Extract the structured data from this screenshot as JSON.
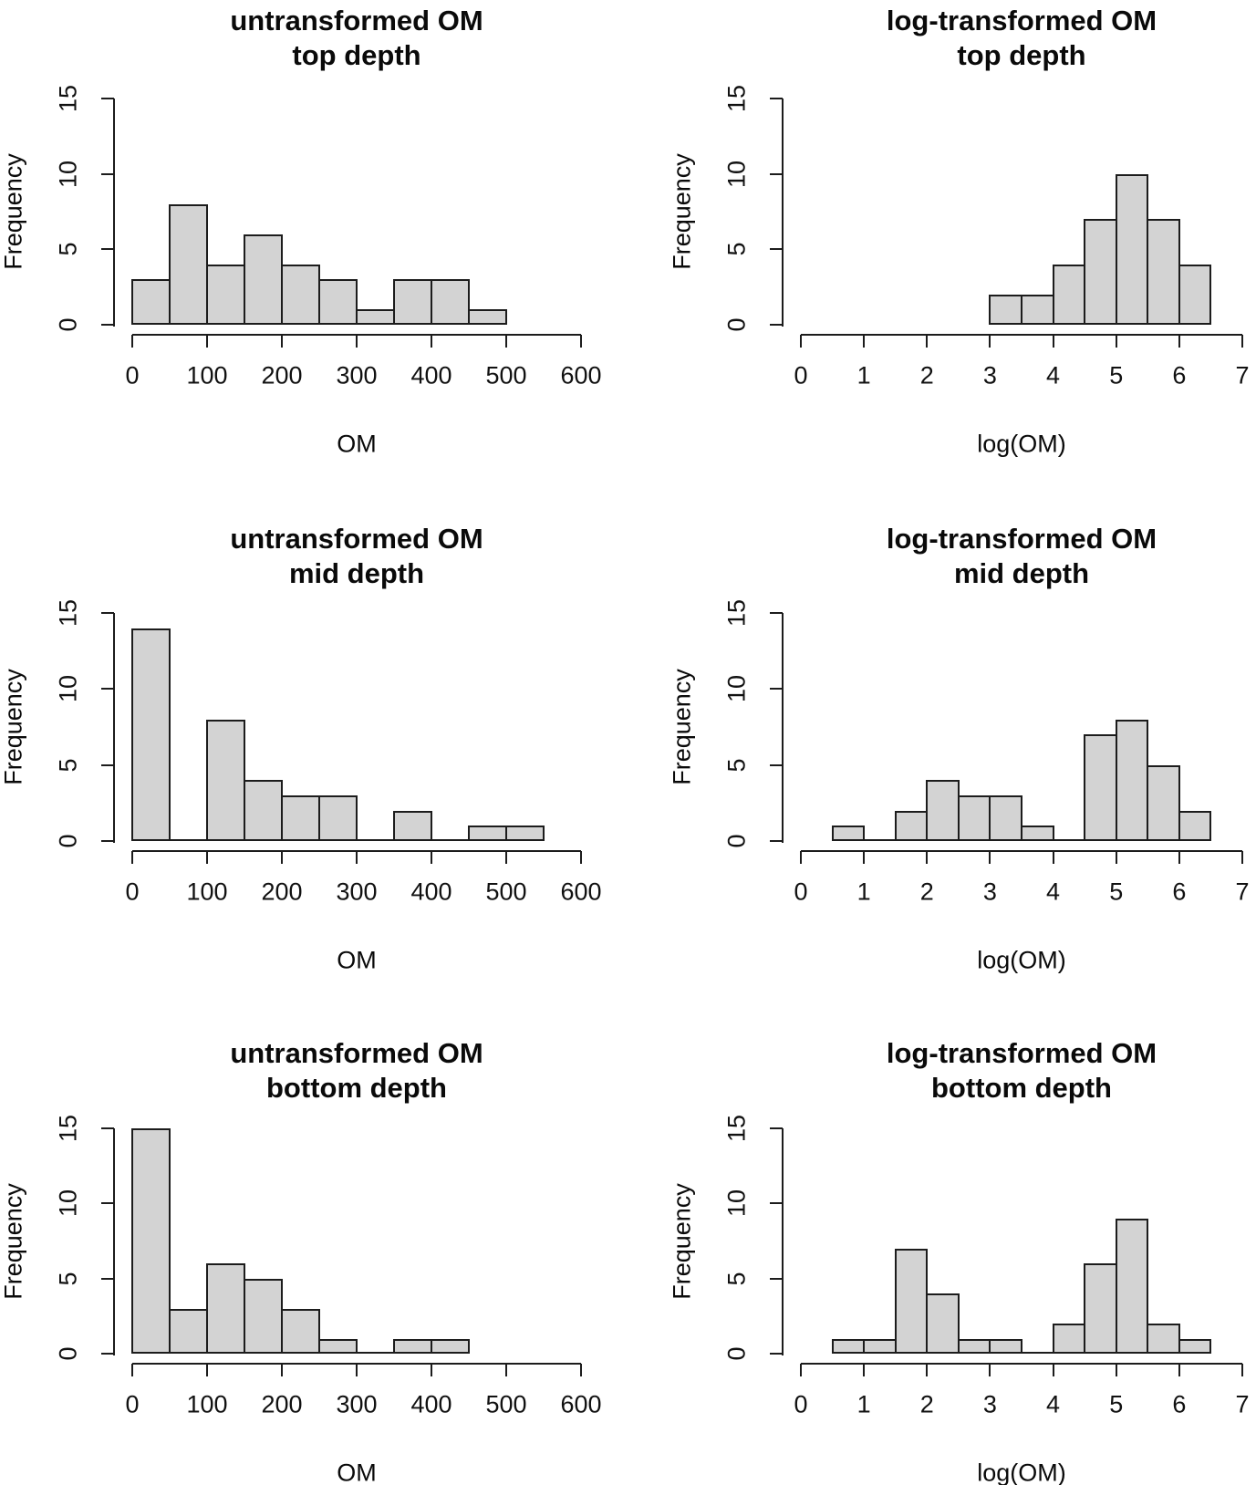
{
  "figure": {
    "description": "2x3 grid of R histograms comparing untransformed vs log-transformed OM at three depths",
    "colors": {
      "background": "#ffffff",
      "bar_fill": "#d3d3d3",
      "bar_border": "#1c1c1c",
      "axis": "#1c1c1c",
      "text": "#0a0a0a"
    }
  },
  "chart_data": [
    {
      "type": "bar",
      "panel": "top-left",
      "title_line1": "untransformed OM",
      "title_line2": "top depth",
      "xlabel": "OM",
      "ylabel": "Frequency",
      "xlim": [
        0,
        600
      ],
      "ylim": [
        0,
        15
      ],
      "xticks": [
        0,
        100,
        200,
        300,
        400,
        500,
        600
      ],
      "yticks": [
        0,
        5,
        10,
        15
      ],
      "bin_start": 0,
      "bin_width": 50,
      "counts": [
        3,
        8,
        4,
        6,
        4,
        3,
        1,
        3,
        3,
        1
      ],
      "grid": false,
      "legend": false
    },
    {
      "type": "bar",
      "panel": "top-right",
      "title_line1": "log-transformed OM",
      "title_line2": "top depth",
      "xlabel": "log(OM)",
      "ylabel": "Frequency",
      "xlim": [
        0,
        7
      ],
      "ylim": [
        0,
        15
      ],
      "xticks": [
        0,
        1,
        2,
        3,
        4,
        5,
        6,
        7
      ],
      "yticks": [
        0,
        5,
        10,
        15
      ],
      "bin_start": 3,
      "bin_width": 0.5,
      "counts": [
        2,
        2,
        4,
        7,
        10,
        7,
        4
      ],
      "grid": false,
      "legend": false
    },
    {
      "type": "bar",
      "panel": "mid-left",
      "title_line1": "untransformed OM",
      "title_line2": "mid depth",
      "xlabel": "OM",
      "ylabel": "Frequency",
      "xlim": [
        0,
        600
      ],
      "ylim": [
        0,
        15
      ],
      "xticks": [
        0,
        100,
        200,
        300,
        400,
        500,
        600
      ],
      "yticks": [
        0,
        5,
        10,
        15
      ],
      "bin_start": 0,
      "bin_width": 50,
      "counts": [
        14,
        0,
        8,
        4,
        3,
        3,
        0,
        2,
        0,
        1,
        1
      ],
      "grid": false,
      "legend": false
    },
    {
      "type": "bar",
      "panel": "mid-right",
      "title_line1": "log-transformed OM",
      "title_line2": "mid depth",
      "xlabel": "log(OM)",
      "ylabel": "Frequency",
      "xlim": [
        0,
        7
      ],
      "ylim": [
        0,
        15
      ],
      "xticks": [
        0,
        1,
        2,
        3,
        4,
        5,
        6,
        7
      ],
      "yticks": [
        0,
        5,
        10,
        15
      ],
      "bin_start": 0.5,
      "bin_width": 0.5,
      "counts": [
        1,
        0,
        2,
        4,
        3,
        3,
        1,
        0,
        7,
        8,
        5,
        2
      ],
      "grid": false,
      "legend": false
    },
    {
      "type": "bar",
      "panel": "bottom-left",
      "title_line1": "untransformed OM",
      "title_line2": "bottom depth",
      "xlabel": "OM",
      "ylabel": "Frequency",
      "xlim": [
        0,
        600
      ],
      "ylim": [
        0,
        15
      ],
      "xticks": [
        0,
        100,
        200,
        300,
        400,
        500,
        600
      ],
      "yticks": [
        0,
        5,
        10,
        15
      ],
      "bin_start": 0,
      "bin_width": 50,
      "counts": [
        15,
        3,
        6,
        5,
        3,
        1,
        0,
        1,
        1
      ],
      "grid": false,
      "legend": false
    },
    {
      "type": "bar",
      "panel": "bottom-right",
      "title_line1": "log-transformed OM",
      "title_line2": "bottom depth",
      "xlabel": "log(OM)",
      "ylabel": "Frequency",
      "xlim": [
        0,
        7
      ],
      "ylim": [
        0,
        15
      ],
      "xticks": [
        0,
        1,
        2,
        3,
        4,
        5,
        6,
        7
      ],
      "yticks": [
        0,
        5,
        10,
        15
      ],
      "bin_start": 0.5,
      "bin_width": 0.5,
      "counts": [
        1,
        1,
        7,
        4,
        1,
        1,
        0,
        2,
        6,
        9,
        2,
        1
      ],
      "grid": false,
      "legend": false
    }
  ]
}
